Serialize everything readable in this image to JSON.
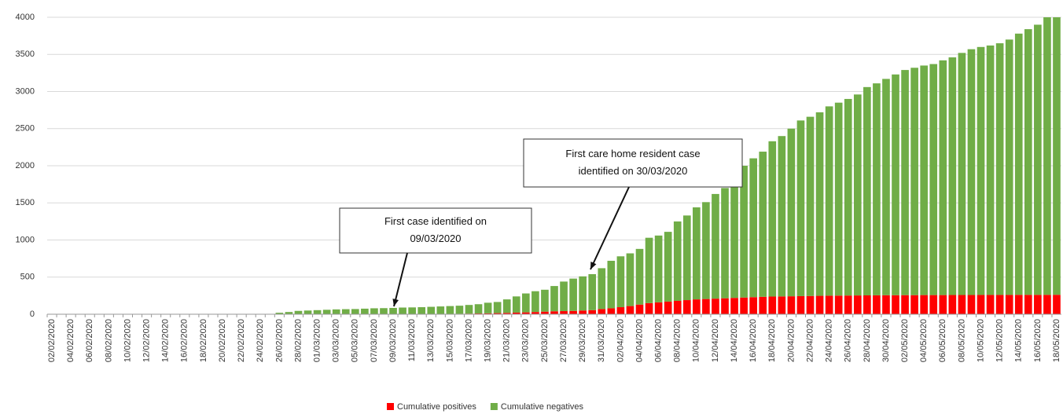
{
  "chart_data": {
    "type": "stacked_bar",
    "categories": [
      "02/02/2020",
      null,
      "04/02/2020",
      null,
      "06/02/2020",
      null,
      "08/02/2020",
      null,
      "10/02/2020",
      null,
      "12/02/2020",
      null,
      "14/02/2020",
      null,
      "16/02/2020",
      null,
      "18/02/2020",
      null,
      "20/02/2020",
      null,
      "22/02/2020",
      null,
      "24/02/2020",
      null,
      "26/02/2020",
      null,
      "28/02/2020",
      null,
      "01/03/2020",
      null,
      "03/03/2020",
      null,
      "05/03/2020",
      null,
      "07/03/2020",
      null,
      "09/03/2020",
      null,
      "11/03/2020",
      null,
      "13/03/2020",
      null,
      "15/03/2020",
      null,
      "17/03/2020",
      null,
      "19/03/2020",
      null,
      "21/03/2020",
      null,
      "23/03/2020",
      null,
      "25/03/2020",
      null,
      "27/03/2020",
      null,
      "29/03/2020",
      null,
      "31/03/2020",
      null,
      "02/04/2020",
      null,
      "04/04/2020",
      null,
      "06/04/2020",
      null,
      "08/04/2020",
      null,
      "10/04/2020",
      null,
      "12/04/2020",
      null,
      "14/04/2020",
      null,
      "16/04/2020",
      null,
      "18/04/2020",
      null,
      "20/04/2020",
      null,
      "22/04/2020",
      null,
      "24/04/2020",
      null,
      "26/04/2020",
      null,
      "28/04/2020",
      null,
      "30/04/2020",
      null,
      "02/05/2020",
      null,
      "04/05/2020",
      null,
      "06/05/2020",
      null,
      "08/05/2020",
      null,
      "10/05/2020",
      null,
      "12/05/2020",
      null,
      "14/05/2020",
      null,
      "16/05/2020",
      null,
      "18/05/2020"
    ],
    "series": [
      {
        "name": "Cumulative positives",
        "color": "#ff0000",
        "values": [
          0,
          0,
          0,
          0,
          0,
          0,
          0,
          0,
          0,
          0,
          0,
          0,
          0,
          0,
          0,
          0,
          0,
          0,
          0,
          0,
          0,
          0,
          0,
          0,
          0,
          0,
          0,
          0,
          0,
          0,
          0,
          0,
          0,
          0,
          0,
          0,
          1,
          1,
          1,
          2,
          2,
          3,
          5,
          6,
          8,
          10,
          12,
          15,
          18,
          22,
          25,
          30,
          35,
          40,
          42,
          45,
          50,
          55,
          70,
          80,
          95,
          110,
          130,
          150,
          160,
          170,
          180,
          190,
          200,
          205,
          210,
          215,
          220,
          225,
          230,
          235,
          238,
          240,
          242,
          244,
          246,
          248,
          250,
          251,
          252,
          253,
          254,
          255,
          256,
          256,
          257,
          257,
          258,
          258,
          258,
          259,
          259,
          259,
          260,
          260,
          260,
          260,
          261,
          261,
          261,
          261,
          262
        ]
      },
      {
        "name": "Cumulative negatives",
        "color": "#70ad47",
        "values": [
          0,
          0,
          0,
          0,
          0,
          0,
          0,
          0,
          0,
          0,
          0,
          0,
          0,
          0,
          0,
          0,
          0,
          0,
          0,
          0,
          0,
          0,
          0,
          0,
          20,
          30,
          45,
          50,
          55,
          60,
          65,
          68,
          70,
          75,
          80,
          82,
          84,
          89,
          91,
          93,
          98,
          102,
          105,
          109,
          117,
          125,
          143,
          150,
          182,
          218,
          255,
          280,
          295,
          340,
          398,
          435,
          460,
          485,
          550,
          640,
          685,
          710,
          750,
          880,
          900,
          940,
          1070,
          1140,
          1240,
          1305,
          1410,
          1485,
          1680,
          1775,
          1870,
          1955,
          2092,
          2160,
          2258,
          2366,
          2414,
          2472,
          2550,
          2599,
          2648,
          2707,
          2806,
          2855,
          2914,
          2974,
          3033,
          3063,
          3092,
          3112,
          3162,
          3201,
          3261,
          3311,
          3340,
          3360,
          3390,
          3440,
          3519,
          3579,
          3639,
          3739,
          3738
        ]
      }
    ],
    "ylim": [
      0,
      4000
    ],
    "yticks": [
      0,
      500,
      1000,
      1500,
      2000,
      2500,
      3000,
      3500,
      4000
    ],
    "grid": true,
    "annotations": [
      {
        "lines": [
          "First case identified on",
          "09/03/2020"
        ]
      },
      {
        "lines": [
          "First care home resident case",
          "identified on 30/03/2020"
        ]
      }
    ]
  }
}
